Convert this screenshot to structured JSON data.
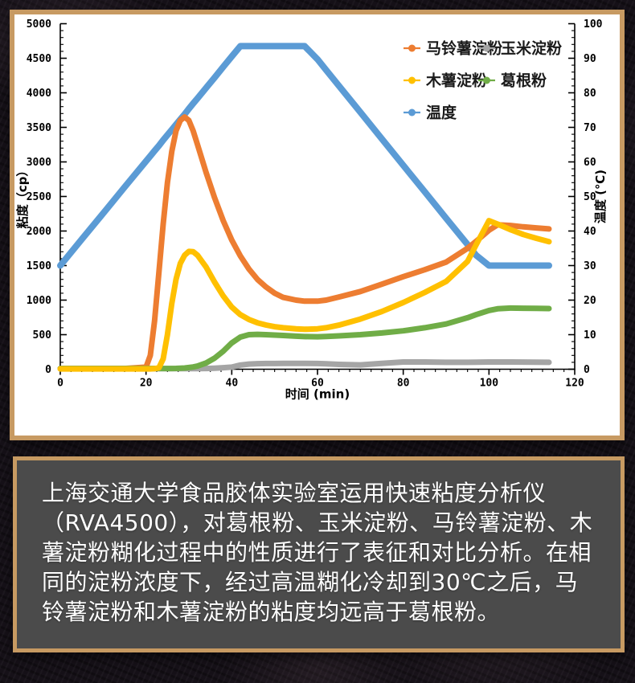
{
  "chart_data": {
    "type": "line",
    "title": "",
    "xlabel": "时间 (min)",
    "ylabel_left": "粘度（cp）",
    "ylabel_right": "温度 (℃)",
    "xlim": [
      0,
      120
    ],
    "ylim_left": [
      0,
      5000
    ],
    "ylim_right": [
      0,
      100
    ],
    "x_ticks": [
      0,
      20,
      40,
      60,
      80,
      100,
      120
    ],
    "x_minor_step": 2.5,
    "y_ticks_left": [
      0,
      500,
      1000,
      1500,
      2000,
      2500,
      3000,
      3500,
      4000,
      4500,
      5000
    ],
    "y_left_minor_step": 100,
    "y_ticks_right": [
      0,
      10,
      20,
      30,
      40,
      50,
      60,
      70,
      80,
      90,
      100
    ],
    "y_right_minor_step": 2,
    "grid": false,
    "legend_position": "top-right",
    "x": [
      0,
      5,
      10,
      15,
      20,
      21,
      22,
      23,
      24,
      25,
      26,
      27,
      28,
      29,
      30,
      31,
      32,
      34,
      36,
      38,
      40,
      42,
      44,
      46,
      48,
      50,
      52,
      55,
      57,
      60,
      62,
      65,
      70,
      75,
      80,
      85,
      90,
      95,
      97,
      100,
      102,
      105,
      108,
      111,
      114
    ],
    "series": [
      {
        "key": "potato-starch",
        "name": "马铃薯淀粉",
        "color": "#ED7D31",
        "axis": "left",
        "values": [
          10,
          10,
          10,
          10,
          30,
          200,
          700,
          1400,
          2100,
          2700,
          3150,
          3450,
          3600,
          3650,
          3600,
          3450,
          3250,
          2850,
          2480,
          2150,
          1870,
          1640,
          1450,
          1300,
          1190,
          1100,
          1040,
          1000,
          985,
          985,
          1000,
          1045,
          1125,
          1230,
          1340,
          1440,
          1550,
          1750,
          1850,
          2010,
          2090,
          2080,
          2060,
          2045,
          2030
        ]
      },
      {
        "key": "corn-starch",
        "name": "玉米淀粉",
        "color": "#A5A5A5",
        "axis": "left",
        "values": [
          8,
          8,
          8,
          8,
          8,
          8,
          8,
          8,
          8,
          8,
          8,
          8,
          8,
          8,
          8,
          8,
          8,
          10,
          15,
          22,
          30,
          60,
          75,
          80,
          82,
          83,
          84,
          85,
          85,
          82,
          78,
          70,
          63,
          85,
          105,
          105,
          100,
          100,
          102,
          105,
          105,
          105,
          104,
          102,
          100
        ]
      },
      {
        "key": "tapioca-starch",
        "name": "木薯淀粉",
        "color": "#FFC000",
        "axis": "left",
        "values": [
          5,
          5,
          5,
          5,
          5,
          5,
          8,
          20,
          150,
          500,
          950,
          1300,
          1530,
          1650,
          1705,
          1700,
          1650,
          1480,
          1260,
          1060,
          900,
          790,
          720,
          672,
          640,
          615,
          600,
          585,
          578,
          585,
          600,
          638,
          725,
          835,
          965,
          1110,
          1270,
          1560,
          1800,
          2150,
          2100,
          2020,
          1950,
          1895,
          1845
        ]
      },
      {
        "key": "kudzu-powder",
        "name": "葛根粉",
        "color": "#70AD47",
        "axis": "left",
        "values": [
          10,
          10,
          10,
          10,
          10,
          10,
          10,
          10,
          10,
          10,
          10,
          12,
          15,
          18,
          25,
          32,
          45,
          90,
          160,
          260,
          380,
          465,
          500,
          505,
          500,
          494,
          488,
          478,
          472,
          470,
          473,
          482,
          500,
          525,
          556,
          600,
          655,
          745,
          790,
          850,
          875,
          885,
          883,
          880,
          878
        ]
      },
      {
        "key": "temperature",
        "name": "温度",
        "color": "#5B9BD5",
        "axis": "right",
        "values": [
          30,
          37.6,
          45.1,
          52.7,
          60.2,
          61.7,
          63.2,
          64.7,
          66.3,
          67.8,
          69.3,
          70.8,
          72.3,
          73.8,
          75.4,
          76.9,
          78.4,
          81.4,
          84.4,
          87.5,
          90.5,
          93.5,
          93.5,
          93.5,
          93.5,
          93.5,
          93.5,
          93.5,
          93.5,
          89.7,
          86.6,
          82.0,
          74.4,
          66.7,
          59.0,
          51.4,
          43.7,
          36.1,
          33.0,
          30,
          30,
          30,
          30,
          30,
          30
        ]
      }
    ],
    "draw_order": [
      "temperature",
      "corn-starch",
      "potato-starch",
      "kudzu-powder",
      "tapioca-starch"
    ]
  },
  "caption": {
    "text": "上海交通大学食品胶体实验室运用快速粘度分析仪（RVA4500），对葛根粉、玉米淀粉、马铃薯淀粉、木薯淀粉糊化过程中的性质进行了表征和对比分析。在相同的淀粉浓度下，经过高温糊化冷却到30℃之后，马铃薯淀粉和木薯淀粉的粘度均远高于葛根粉。"
  },
  "colors": {
    "frame": "#C79A62",
    "caption_bg": "#4B4B4B",
    "caption_text": "#FFFFFF",
    "chart_bg": "#FFFFFF",
    "axis": "#000000",
    "page_bg": "#161118"
  }
}
